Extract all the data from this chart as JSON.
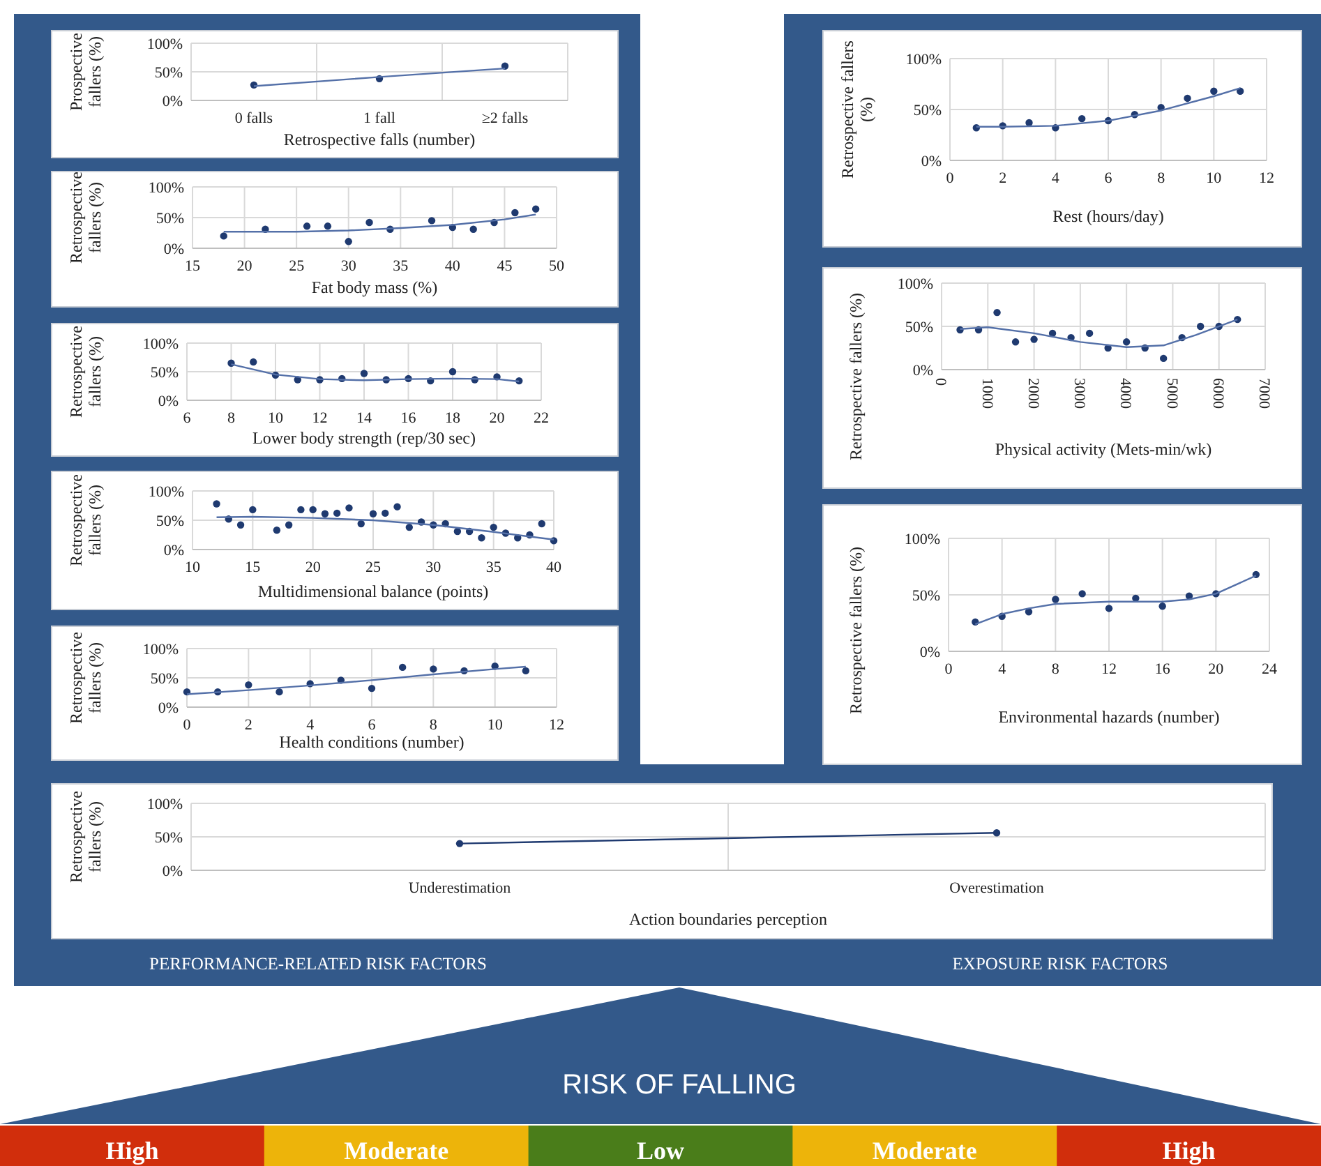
{
  "chart_data": [
    {
      "type": "scatter",
      "ylabel": "Prospective fallers (%)",
      "xlabel": "Retrospective falls (number)",
      "categories": [
        "0 falls",
        "1 fall",
        "≥2 falls"
      ],
      "ylim": [
        0,
        100
      ],
      "yticks": [
        {
          "value": 0,
          "label": "0%"
        },
        {
          "value": 50,
          "label": "50%"
        },
        {
          "value": 100,
          "label": "100%"
        }
      ],
      "grid": true,
      "series": [
        {
          "type": "scatter",
          "color": "#1f3a70",
          "marker": "circle",
          "values": [
            27,
            38,
            60
          ]
        },
        {
          "type": "line",
          "color": "#5470a8",
          "values": [
            25,
            41,
            56
          ]
        }
      ]
    },
    {
      "type": "scatter",
      "ylabel": "Retrospective fallers (%)",
      "xlabel": "Fat body mass (%)",
      "xlim": [
        15,
        50
      ],
      "xticks": [
        15,
        20,
        25,
        30,
        35,
        40,
        45,
        50
      ],
      "ylim": [
        0,
        100
      ],
      "yticks": [
        {
          "value": 0,
          "label": "0%"
        },
        {
          "value": 50,
          "label": "50%"
        },
        {
          "value": 100,
          "label": "100%"
        }
      ],
      "grid": true,
      "series": [
        {
          "type": "scatter",
          "color": "#1f3a70",
          "marker": "circle",
          "x": [
            18,
            22,
            26,
            28,
            30,
            32,
            34,
            38,
            40,
            42,
            44,
            46,
            48
          ],
          "values": [
            20,
            31,
            36,
            36,
            11,
            42,
            31,
            45,
            34,
            31,
            42,
            58,
            64
          ]
        },
        {
          "type": "line",
          "color": "#5470a8",
          "x": [
            18,
            25,
            30,
            35,
            40,
            45,
            48
          ],
          "values": [
            27,
            27,
            29,
            33,
            38,
            47,
            55
          ]
        }
      ]
    },
    {
      "type": "scatter",
      "ylabel": "Retrospective fallers (%)",
      "xlabel": "Lower body strength (rep/30 sec)",
      "xlim": [
        6,
        22
      ],
      "xticks": [
        6,
        8,
        10,
        12,
        14,
        16,
        18,
        20,
        22
      ],
      "ylim": [
        0,
        100
      ],
      "yticks": [
        {
          "value": 0,
          "label": "0%"
        },
        {
          "value": 50,
          "label": "50%"
        },
        {
          "value": 100,
          "label": "100%"
        }
      ],
      "grid": true,
      "series": [
        {
          "type": "scatter",
          "color": "#1f3a70",
          "marker": "circle",
          "x": [
            8,
            9,
            10,
            11,
            12,
            13,
            14,
            15,
            16,
            17,
            18,
            19,
            20,
            21
          ],
          "values": [
            65,
            67,
            44,
            36,
            36,
            38,
            47,
            36,
            38,
            34,
            50,
            36,
            41,
            34
          ]
        },
        {
          "type": "line",
          "color": "#5470a8",
          "x": [
            8,
            10,
            12,
            14,
            16,
            18,
            20,
            21
          ],
          "values": [
            63,
            45,
            37,
            35,
            37,
            38,
            37,
            33
          ]
        }
      ]
    },
    {
      "type": "scatter",
      "ylabel": "Retrospective fallers (%)",
      "xlabel": "Multidimensional balance (points)",
      "xlim": [
        10,
        40
      ],
      "xticks": [
        10,
        15,
        20,
        25,
        30,
        35,
        40
      ],
      "ylim": [
        0,
        100
      ],
      "yticks": [
        {
          "value": 0,
          "label": "0%"
        },
        {
          "value": 50,
          "label": "50%"
        },
        {
          "value": 100,
          "label": "100%"
        }
      ],
      "grid": true,
      "series": [
        {
          "type": "scatter",
          "color": "#1f3a70",
          "marker": "circle",
          "x": [
            12,
            13,
            14,
            15,
            17,
            18,
            19,
            20,
            21,
            22,
            23,
            24,
            25,
            26,
            27,
            28,
            29,
            30,
            31,
            32,
            33,
            34,
            35,
            36,
            37,
            38,
            39,
            40
          ],
          "values": [
            78,
            52,
            42,
            68,
            33,
            42,
            68,
            68,
            61,
            62,
            71,
            44,
            61,
            62,
            73,
            38,
            47,
            42,
            44,
            31,
            31,
            20,
            38,
            28,
            20,
            25,
            44,
            15
          ]
        },
        {
          "type": "line",
          "color": "#5470a8",
          "x": [
            12,
            15,
            20,
            25,
            30,
            35,
            40
          ],
          "values": [
            55,
            56,
            54,
            50,
            42,
            30,
            17
          ]
        }
      ]
    },
    {
      "type": "scatter",
      "ylabel": "Retrospective fallers (%)",
      "xlabel": "Health conditions (number)",
      "xlim": [
        0,
        12
      ],
      "xticks": [
        0,
        2,
        4,
        6,
        8,
        10,
        12
      ],
      "ylim": [
        0,
        100
      ],
      "yticks": [
        {
          "value": 0,
          "label": "0%"
        },
        {
          "value": 50,
          "label": "50%"
        },
        {
          "value": 100,
          "label": "100%"
        }
      ],
      "grid": true,
      "series": [
        {
          "type": "scatter",
          "color": "#1f3a70",
          "marker": "circle",
          "x": [
            0,
            1,
            2,
            3,
            4,
            5,
            6,
            7,
            8,
            9,
            10,
            11
          ],
          "values": [
            26,
            26,
            38,
            26,
            40,
            46,
            32,
            68,
            65,
            62,
            70,
            62
          ]
        },
        {
          "type": "line",
          "color": "#5470a8",
          "x": [
            0,
            2,
            4,
            6,
            8,
            10,
            11
          ],
          "values": [
            22,
            29,
            37,
            46,
            56,
            65,
            69
          ]
        }
      ]
    },
    {
      "type": "scatter",
      "ylabel": "Retrospective fallers (%)",
      "xlabel": "Rest (hours/day)",
      "xlim": [
        0,
        12
      ],
      "xticks": [
        0,
        2,
        4,
        6,
        8,
        10,
        12
      ],
      "ylim": [
        0,
        100
      ],
      "yticks": [
        {
          "value": 0,
          "label": "0%"
        },
        {
          "value": 50,
          "label": "50%"
        },
        {
          "value": 100,
          "label": "100%"
        }
      ],
      "grid": true,
      "series": [
        {
          "type": "scatter",
          "color": "#1f3a70",
          "marker": "circle",
          "x": [
            1,
            2,
            3,
            4,
            5,
            6,
            7,
            8,
            9,
            10,
            11
          ],
          "values": [
            32,
            34,
            37,
            32,
            41,
            39,
            45,
            52,
            61,
            68,
            68
          ]
        },
        {
          "type": "line",
          "color": "#5470a8",
          "x": [
            1,
            2,
            4,
            6,
            8,
            10,
            11
          ],
          "values": [
            33,
            33,
            34,
            39,
            49,
            63,
            71
          ]
        }
      ]
    },
    {
      "type": "scatter",
      "ylabel": "Retrospective fallers (%)",
      "xlabel": "Physical activity (Mets-min/wk)",
      "xlim": [
        0,
        7000
      ],
      "xticks": [
        0,
        1000,
        2000,
        3000,
        4000,
        5000,
        6000,
        7000
      ],
      "ylim": [
        0,
        100
      ],
      "yticks": [
        {
          "value": 0,
          "label": "0%"
        },
        {
          "value": 50,
          "label": "50%"
        },
        {
          "value": 100,
          "label": "100%"
        }
      ],
      "grid": true,
      "series": [
        {
          "type": "scatter",
          "color": "#1f3a70",
          "marker": "circle",
          "x": [
            400,
            800,
            1200,
            1600,
            2000,
            2400,
            2800,
            3200,
            3600,
            4000,
            4400,
            4800,
            5200,
            5600,
            6000,
            6400
          ],
          "values": [
            46,
            46,
            66,
            32,
            35,
            42,
            37,
            42,
            25,
            32,
            25,
            13,
            37,
            50,
            50,
            58
          ]
        },
        {
          "type": "line",
          "color": "#5470a8",
          "x": [
            400,
            1000,
            2000,
            3000,
            4000,
            4800,
            5500,
            6400
          ],
          "values": [
            47,
            49,
            42,
            32,
            26,
            28,
            40,
            58
          ]
        }
      ]
    },
    {
      "type": "scatter",
      "ylabel": "Retrospective fallers (%)",
      "xlabel": "Environmental hazards (number)",
      "xlim": [
        0,
        24
      ],
      "xticks": [
        0,
        4,
        8,
        12,
        16,
        20,
        24
      ],
      "ylim": [
        0,
        100
      ],
      "yticks": [
        {
          "value": 0,
          "label": "0%"
        },
        {
          "value": 50,
          "label": "50%"
        },
        {
          "value": 100,
          "label": "100%"
        }
      ],
      "grid": true,
      "series": [
        {
          "type": "scatter",
          "color": "#1f3a70",
          "marker": "circle",
          "x": [
            2,
            4,
            6,
            8,
            10,
            12,
            14,
            16,
            18,
            20,
            23
          ],
          "values": [
            26,
            31,
            35,
            46,
            51,
            38,
            47,
            40,
            49,
            51,
            68
          ]
        },
        {
          "type": "line",
          "color": "#5470a8",
          "x": [
            2,
            4,
            6,
            8,
            12,
            16,
            18,
            20,
            23
          ],
          "values": [
            24,
            33,
            38,
            42,
            44,
            44,
            46,
            51,
            67
          ]
        }
      ]
    },
    {
      "type": "line",
      "ylabel": "Retrospective fallers (%)",
      "xlabel": "Action boundaries perception",
      "categories": [
        "Underestimation",
        "Overestimation"
      ],
      "ylim": [
        0,
        100
      ],
      "yticks": [
        {
          "value": 0,
          "label": "0%"
        },
        {
          "value": 50,
          "label": "50%"
        },
        {
          "value": 100,
          "label": "100%"
        }
      ],
      "grid": true,
      "series": [
        {
          "type": "line",
          "color": "#1f3a70",
          "marker": "circle",
          "values": [
            40,
            56
          ]
        }
      ]
    },
    {
      "type": "other",
      "title": "RISK OF FALLING",
      "annotations": [
        "PERFORMANCE-RELATED RISK FACTORS",
        "EXPOSURE RISK FACTORS"
      ],
      "categories": [
        "High",
        "Moderate",
        "Low",
        "Moderate",
        "High"
      ],
      "colors": [
        "#d12e0c",
        "#edb40a",
        "#4a7d1a",
        "#edb40a",
        "#d12e0c"
      ]
    }
  ]
}
